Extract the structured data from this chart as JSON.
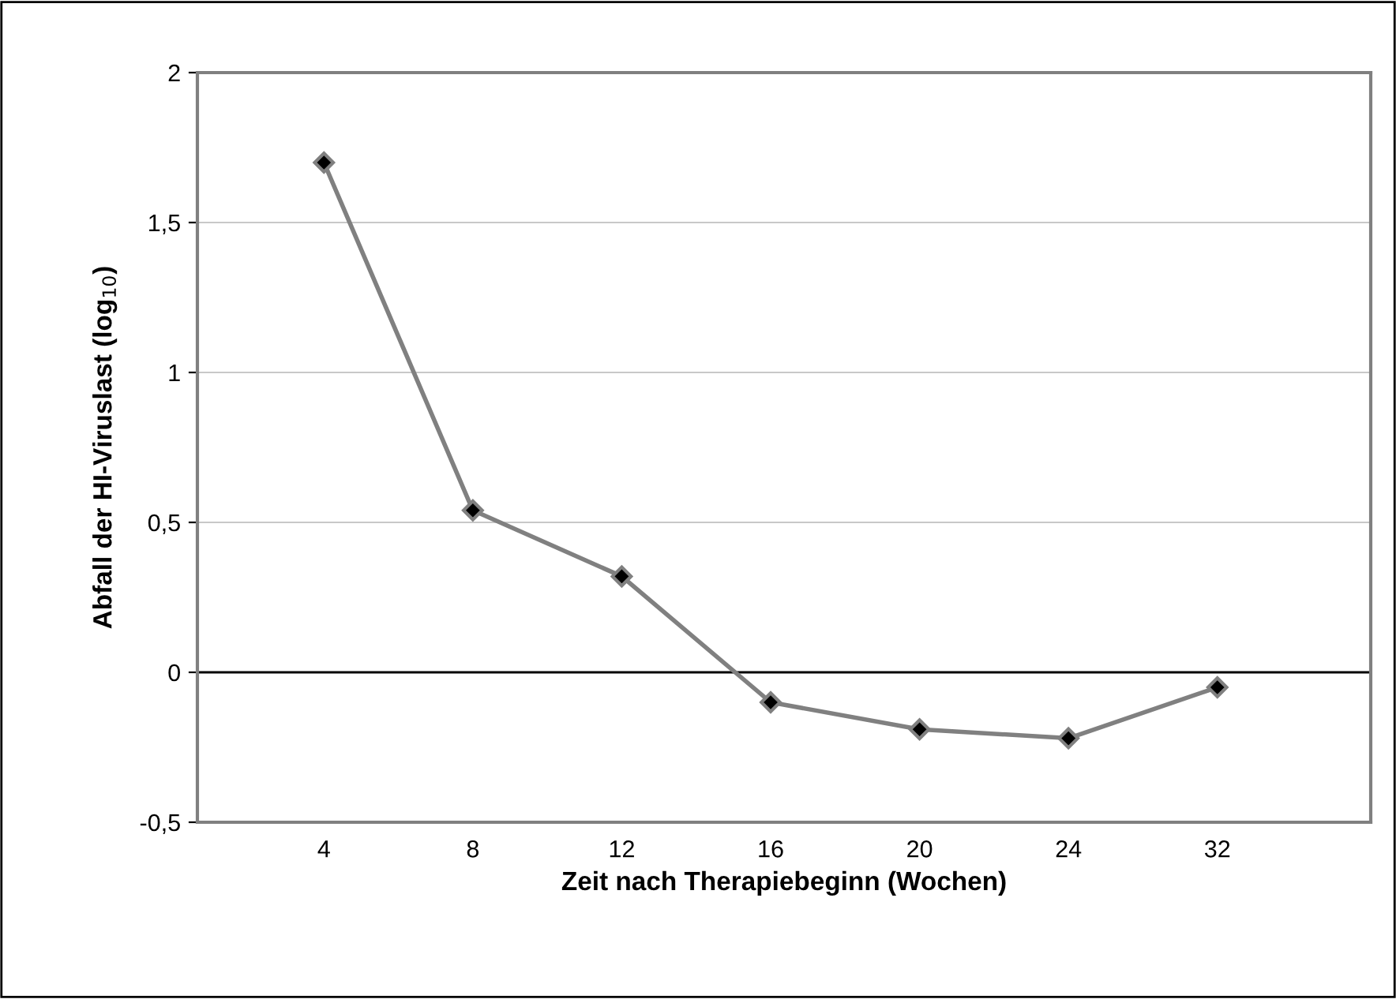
{
  "chart_data": {
    "type": "line",
    "xlabel": "Zeit nach Therapiebeginn (Wochen)",
    "ylabel": "Abfall der HI-Viruslast (log$_{10}$)",
    "categories": [
      "4",
      "8",
      "12",
      "16",
      "20",
      "24",
      "32"
    ],
    "series": [
      {
        "color": "#808080",
        "values": [
          1.7,
          0.54,
          0.32,
          -0.1,
          -0.19,
          -0.22,
          -0.05
        ]
      }
    ],
    "ylim": [
      -0.5,
      2
    ],
    "yticks": [
      {
        "value": -0.5,
        "label": "-0,5"
      },
      0,
      {
        "value": 0.5,
        "label": "0,5"
      },
      1,
      {
        "value": 1.5,
        "label": "1,5"
      },
      2
    ],
    "ref_lines": [
      {
        "axis": "y",
        "value": 0,
        "color": "#000000"
      }
    ],
    "grid": "y",
    "marker": "diamond",
    "line_style": "solid"
  }
}
